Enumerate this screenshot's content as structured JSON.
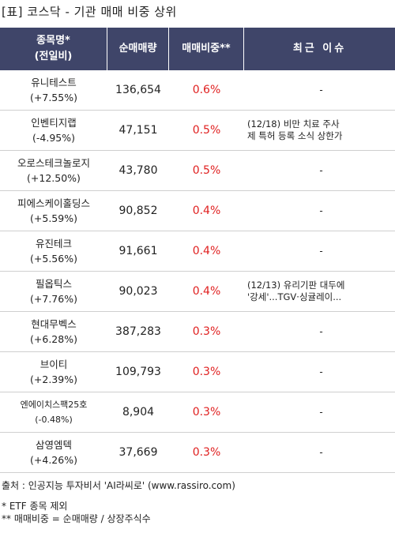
{
  "title": "[표] 코스닥 - 기관 매매 비중 상위",
  "table": {
    "headers": {
      "name_line1": "종목명*",
      "name_line2": "(전일비)",
      "volume": "순매매량",
      "ratio": "매매비중**",
      "issue": "최근 이슈"
    },
    "rows": [
      {
        "name": "유니테스트",
        "change": "(+7.55%)",
        "volume": "136,654",
        "ratio": "0.6%",
        "issue": [
          "-"
        ]
      },
      {
        "name": "인벤티지랩",
        "change": "(-4.95%)",
        "volume": "47,151",
        "ratio": "0.5%",
        "issue": [
          "(12/18) 비만 치료 주사",
          "제 특허 등록 소식 상한가"
        ]
      },
      {
        "name": "오로스테크놀로지",
        "change": "(+12.50%)",
        "volume": "43,780",
        "ratio": "0.5%",
        "issue": [
          "-"
        ]
      },
      {
        "name": "피에스케이홀딩스",
        "change": "(+5.59%)",
        "volume": "90,852",
        "ratio": "0.4%",
        "issue": [
          "-"
        ]
      },
      {
        "name": "유진테크",
        "change": "(+5.56%)",
        "volume": "91,661",
        "ratio": "0.4%",
        "issue": [
          "-"
        ]
      },
      {
        "name": "필옵틱스",
        "change": "(+7.76%)",
        "volume": "90,023",
        "ratio": "0.4%",
        "issue": [
          "(12/13) 유리기판 대두에",
          "'강세'...TGV·싱귤레이..."
        ]
      },
      {
        "name": "현대무벡스",
        "change": "(+6.28%)",
        "volume": "387,283",
        "ratio": "0.3%",
        "issue": [
          "-"
        ]
      },
      {
        "name": "브이티",
        "change": "(+2.39%)",
        "volume": "109,793",
        "ratio": "0.3%",
        "issue": [
          "-"
        ]
      },
      {
        "name": "엔에이치스팩25호",
        "change": "(-0.48%)",
        "volume": "8,904",
        "ratio": "0.3%",
        "issue": [
          "-"
        ]
      },
      {
        "name": "삼영엠텍",
        "change": "(+4.26%)",
        "volume": "37,669",
        "ratio": "0.3%",
        "issue": [
          "-"
        ]
      }
    ]
  },
  "footer": {
    "source": "출처 : 인공지능 투자비서 'AI라씨로' (www.rassiro.com)",
    "note1": "* ETF 종목 제외",
    "note2": "** 매매비중 = 순매매량 / 상장주식수"
  },
  "colors": {
    "header_bg": "#3f4569",
    "ratio_text": "#e02020"
  }
}
